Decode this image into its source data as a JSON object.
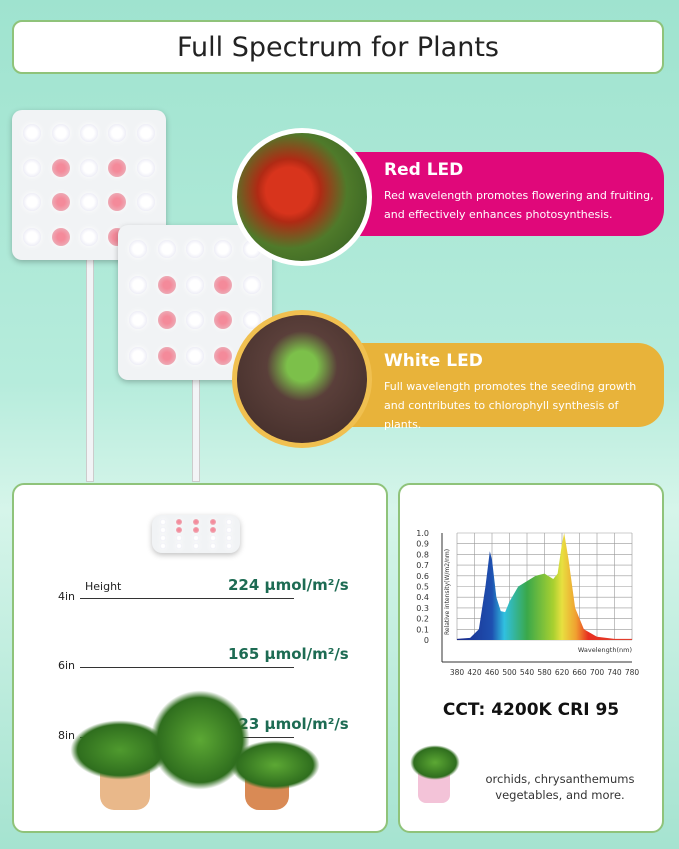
{
  "title": "Full Spectrum for Plants",
  "red_led": {
    "heading": "Red LED",
    "text": "Red wavelength promotes flowering and fruiting, and effectively enhances photosynthesis.",
    "color": "#e0087a"
  },
  "white_led": {
    "heading": "White LED",
    "text": "Full wavelength promotes the seeding growth and contributes to chlorophyll synthesis of plants.",
    "color": "#e8b33a"
  },
  "ppfd": {
    "height_label": "Height",
    "rows": [
      {
        "height": "4in",
        "value": "224 μmol/m²/s"
      },
      {
        "height": "6in",
        "value": "165 μmol/m²/s"
      },
      {
        "height": "8in",
        "value": "123 μmol/m²/s"
      }
    ]
  },
  "chart_data": {
    "type": "area",
    "ylabel": "Relative intensity(W/m2/nm)",
    "xlabel": "Wavelength(nm)",
    "xlim": [
      380,
      780
    ],
    "ylim": [
      0,
      1.0
    ],
    "grid": true,
    "x_ticks": [
      "380",
      "420",
      "460",
      "500",
      "540",
      "580",
      "620",
      "660",
      "700",
      "740",
      "780"
    ],
    "y_ticks": [
      "0",
      "0.1",
      "0.2",
      "0.3",
      "0.4",
      "0.5",
      "0.6",
      "0.7",
      "0.8",
      "0.9",
      "1.0"
    ],
    "x": [
      380,
      410,
      430,
      445,
      455,
      460,
      470,
      480,
      490,
      500,
      520,
      540,
      560,
      580,
      600,
      610,
      620,
      625,
      635,
      650,
      670,
      700,
      740,
      780
    ],
    "y": [
      0.01,
      0.02,
      0.1,
      0.5,
      0.83,
      0.75,
      0.4,
      0.27,
      0.26,
      0.36,
      0.5,
      0.55,
      0.6,
      0.62,
      0.57,
      0.62,
      0.9,
      1.0,
      0.75,
      0.3,
      0.1,
      0.03,
      0.01,
      0.01
    ]
  },
  "specs": "CCT: 4200K  CRI 95",
  "uses": [
    "orchids, chrysanthemums",
    "vegetables, and more."
  ]
}
